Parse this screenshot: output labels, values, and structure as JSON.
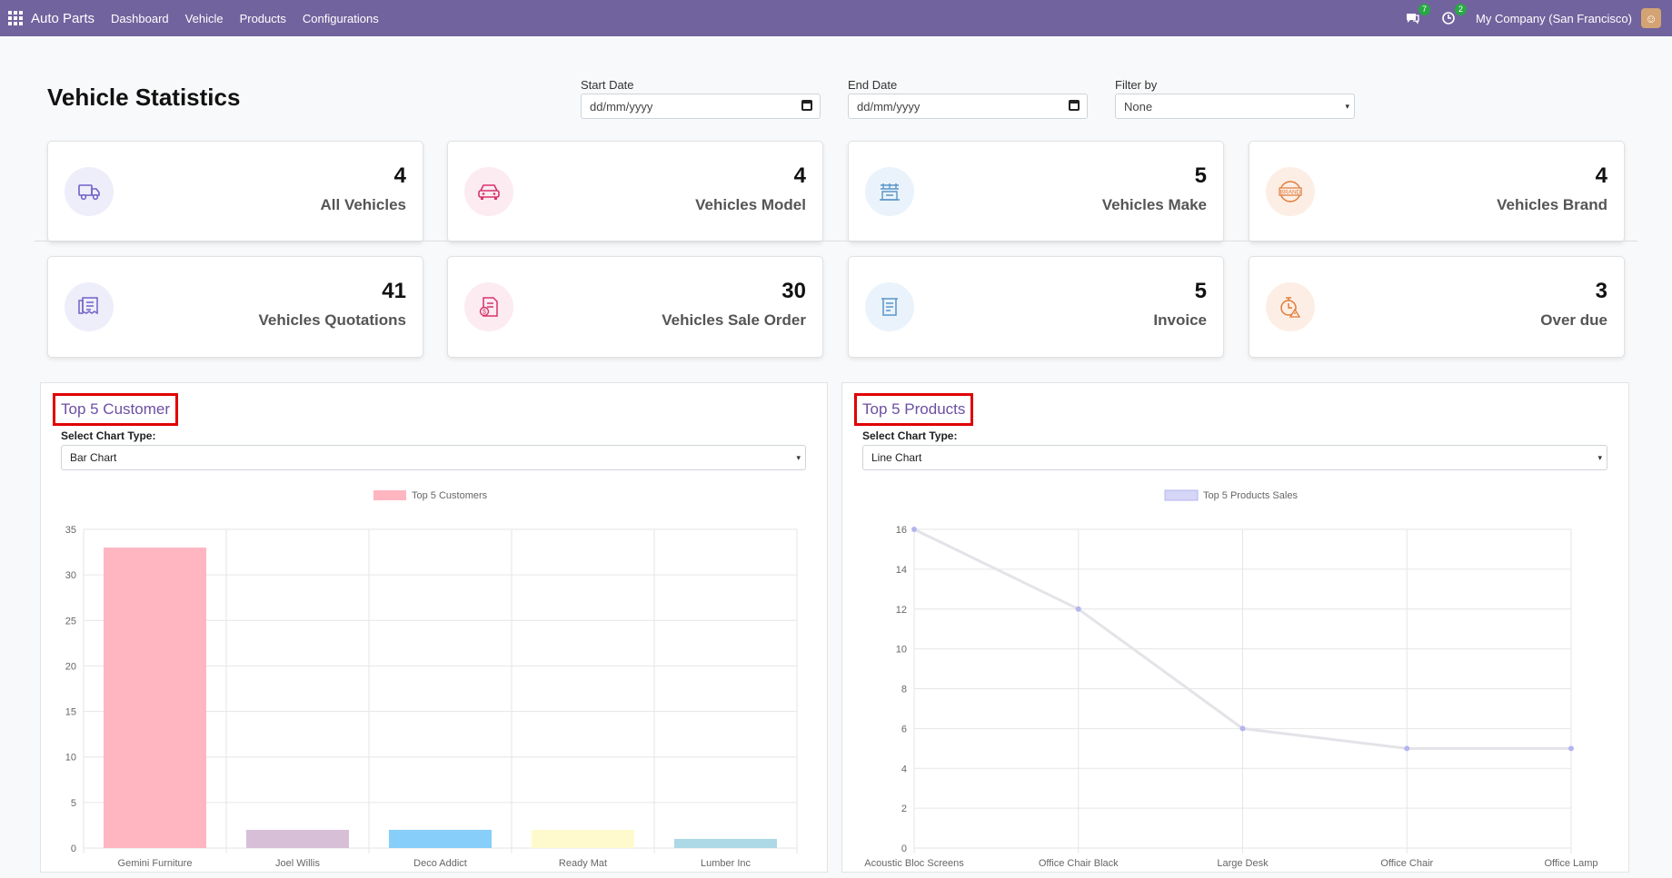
{
  "navbar": {
    "brand": "Auto Parts",
    "menu": [
      "Dashboard",
      "Vehicle",
      "Products",
      "Configurations"
    ],
    "messages_badge": "7",
    "activities_badge": "2",
    "company": "My Company (San Francisco)"
  },
  "page": {
    "title": "Vehicle Statistics",
    "start_date_label": "Start Date",
    "start_date_placeholder": "dd/mm/yyyy",
    "end_date_label": "End Date",
    "end_date_placeholder": "dd/mm/yyyy",
    "filter_label": "Filter by",
    "filter_value": "None"
  },
  "cards": [
    {
      "value": "4",
      "label": "All Vehicles",
      "icon": "truck-icon",
      "color": "#6f63c7",
      "bg": "#eeedfa"
    },
    {
      "value": "4",
      "label": "Vehicles Model",
      "icon": "car-icon",
      "color": "#d6336c",
      "bg": "#fcebf1"
    },
    {
      "value": "5",
      "label": "Vehicles Make",
      "icon": "factory-icon",
      "color": "#5a95c7",
      "bg": "#eaf3fb"
    },
    {
      "value": "4",
      "label": "Vehicles Brand",
      "icon": "brand-badge-icon",
      "color": "#e07b39",
      "bg": "#fdeee5"
    },
    {
      "value": "41",
      "label": "Vehicles Quotations",
      "icon": "quotation-icon",
      "color": "#6f63c7",
      "bg": "#eeedfa"
    },
    {
      "value": "30",
      "label": "Vehicles Sale Order",
      "icon": "sale-order-icon",
      "color": "#d6336c",
      "bg": "#fcebf1"
    },
    {
      "value": "5",
      "label": "Invoice",
      "icon": "invoice-icon",
      "color": "#5a95c7",
      "bg": "#eaf3fb"
    },
    {
      "value": "3",
      "label": "Over due",
      "icon": "overdue-timer-icon",
      "color": "#e07b39",
      "bg": "#fdeee5"
    }
  ],
  "customer_panel": {
    "title": "Top 5 Customer",
    "chart_type_label": "Select Chart Type:",
    "chart_type_value": "Bar Chart"
  },
  "products_panel": {
    "title": "Top 5 Products",
    "chart_type_label": "Select Chart Type:",
    "chart_type_value": "Line Chart"
  },
  "chart_data": [
    {
      "type": "bar",
      "legend": "Top 5 Customers",
      "categories": [
        "Gemini Furniture",
        "Joel Willis",
        "Deco Addict",
        "Ready Mat",
        "Lumber Inc"
      ],
      "values": [
        33,
        2,
        2,
        2,
        1
      ],
      "colors": [
        "#ffb6c1",
        "#d8bfd8",
        "#87cefa",
        "#fffacd",
        "#add8e6"
      ],
      "ylim": [
        0,
        35
      ],
      "yticks": [
        0,
        5,
        10,
        15,
        20,
        25,
        30,
        35
      ],
      "grid": true,
      "legend_position": "top"
    },
    {
      "type": "line",
      "legend": "Top 5 Products Sales",
      "categories": [
        "Acoustic Bloc Screens",
        "Office Chair Black",
        "Large Desk",
        "Office Chair",
        "Office Lamp"
      ],
      "values": [
        16,
        12,
        6,
        5,
        5
      ],
      "color": "#b4b4f0",
      "ylim": [
        0,
        16
      ],
      "yticks": [
        0,
        2,
        4,
        6,
        8,
        10,
        12,
        14,
        16
      ],
      "grid": true,
      "legend_position": "top"
    }
  ]
}
